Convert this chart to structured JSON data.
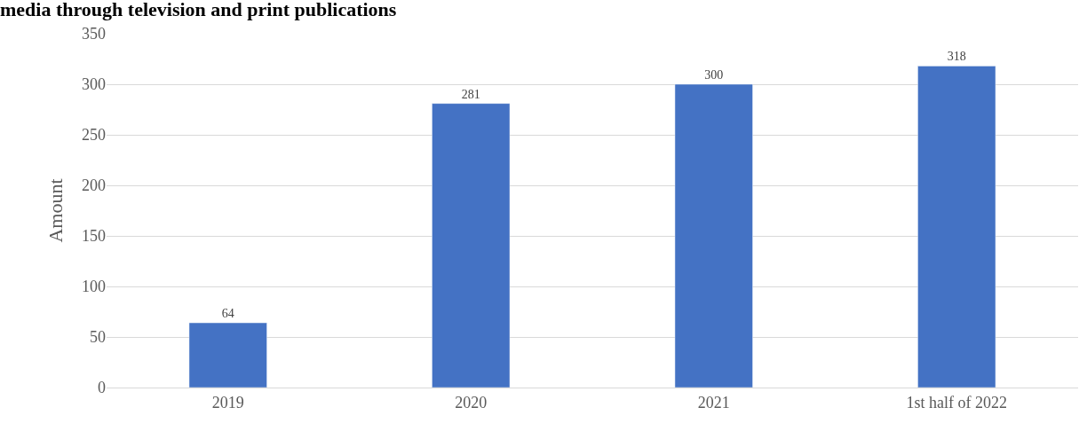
{
  "chart_data": {
    "type": "bar",
    "title": "media through television and print publications",
    "ylabel": "Amount",
    "categories": [
      "2019",
      "2020",
      "2021",
      "1st half of 2022"
    ],
    "values": [
      64,
      281,
      300,
      318
    ],
    "color": "#4472c4",
    "ylim": [
      0,
      350
    ],
    "yticks": [
      0,
      50,
      100,
      150,
      200,
      250,
      300,
      350
    ],
    "grid": "y",
    "data_labels": true
  }
}
